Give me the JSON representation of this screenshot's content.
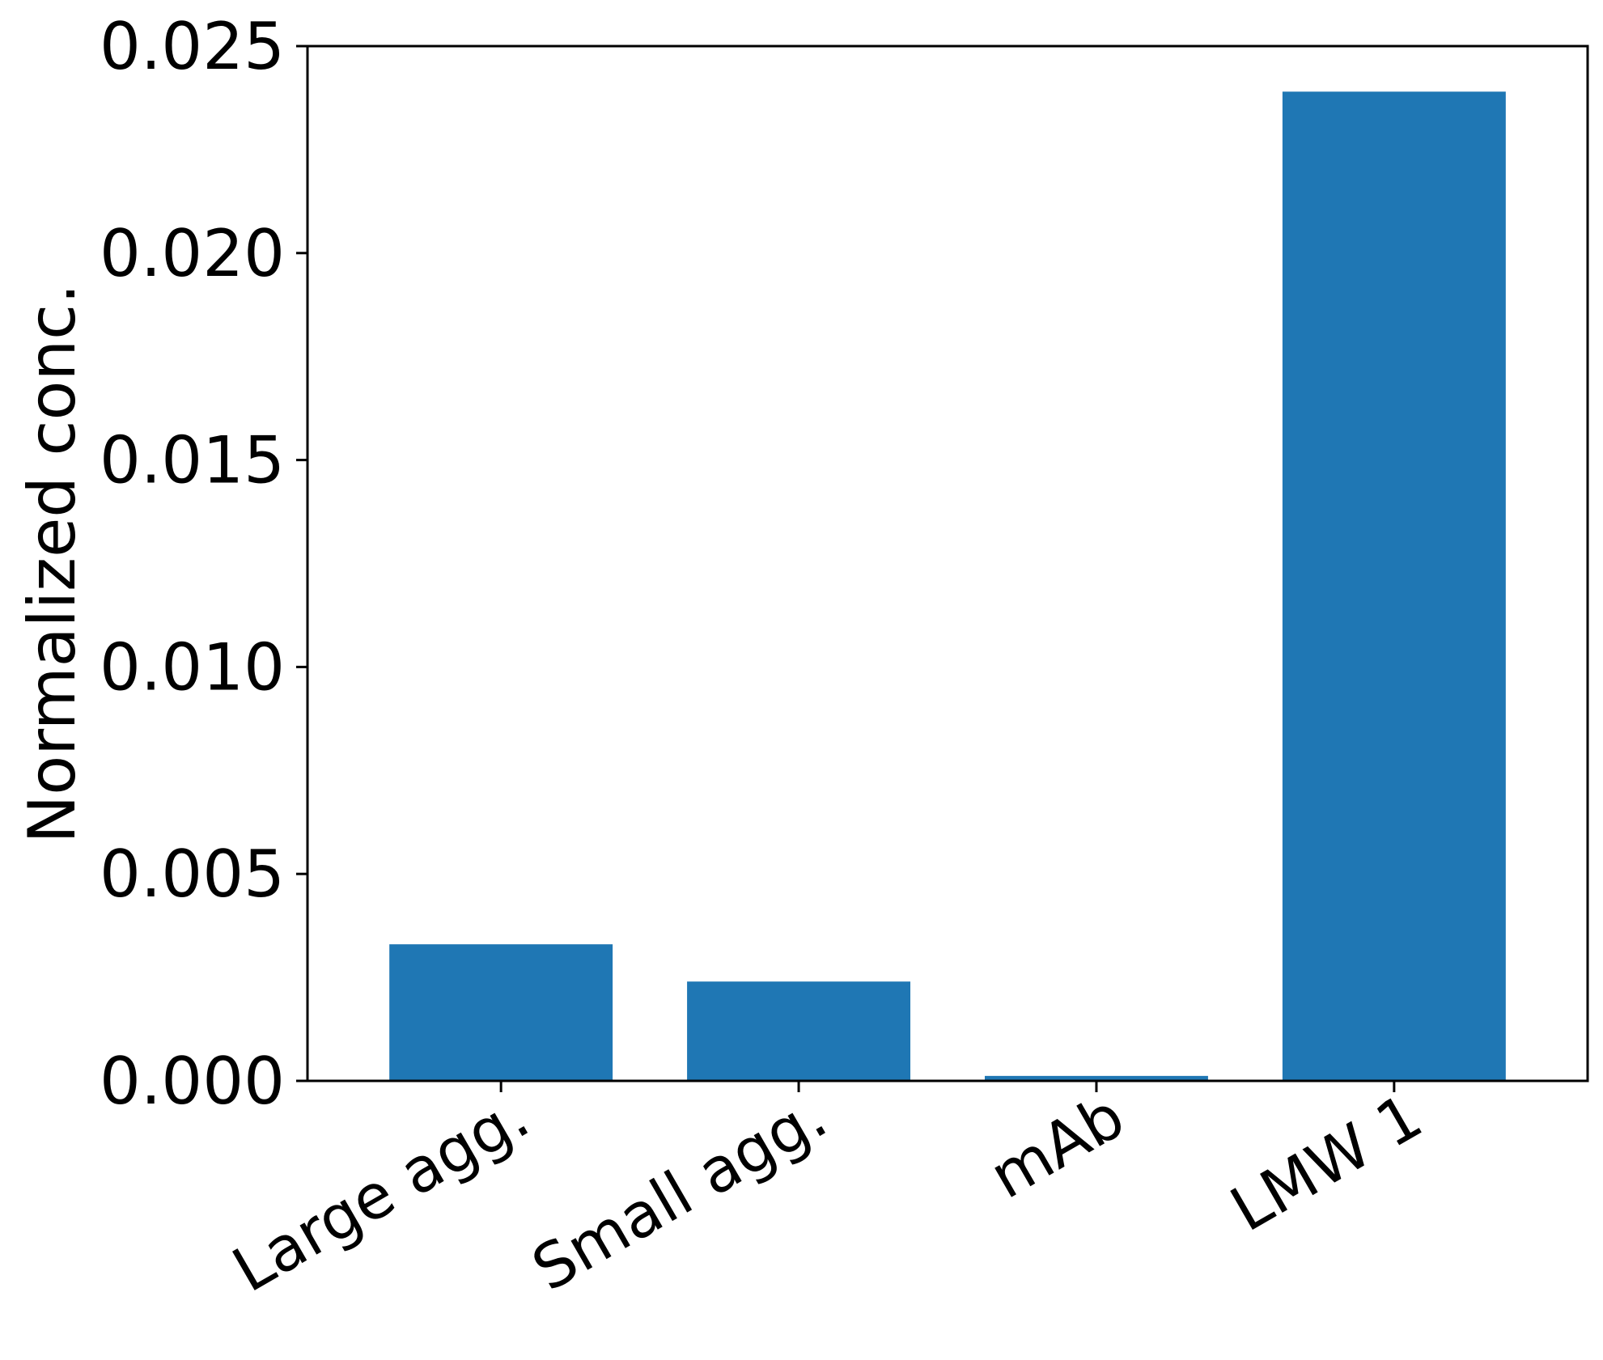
{
  "chart_data": {
    "type": "bar",
    "title": "",
    "xlabel": "",
    "ylabel": "Normalized conc.",
    "categories": [
      "Large agg.",
      "Small agg.",
      "mAb",
      "LMW 1"
    ],
    "values": [
      0.0033,
      0.0024,
      0.00012,
      0.0239
    ],
    "ylim": [
      0,
      0.025
    ],
    "yticks": [
      "0.000",
      "0.005",
      "0.010",
      "0.015",
      "0.020",
      "0.025"
    ],
    "bar_color": "#1f77b4",
    "grid": false,
    "legend": "none"
  }
}
